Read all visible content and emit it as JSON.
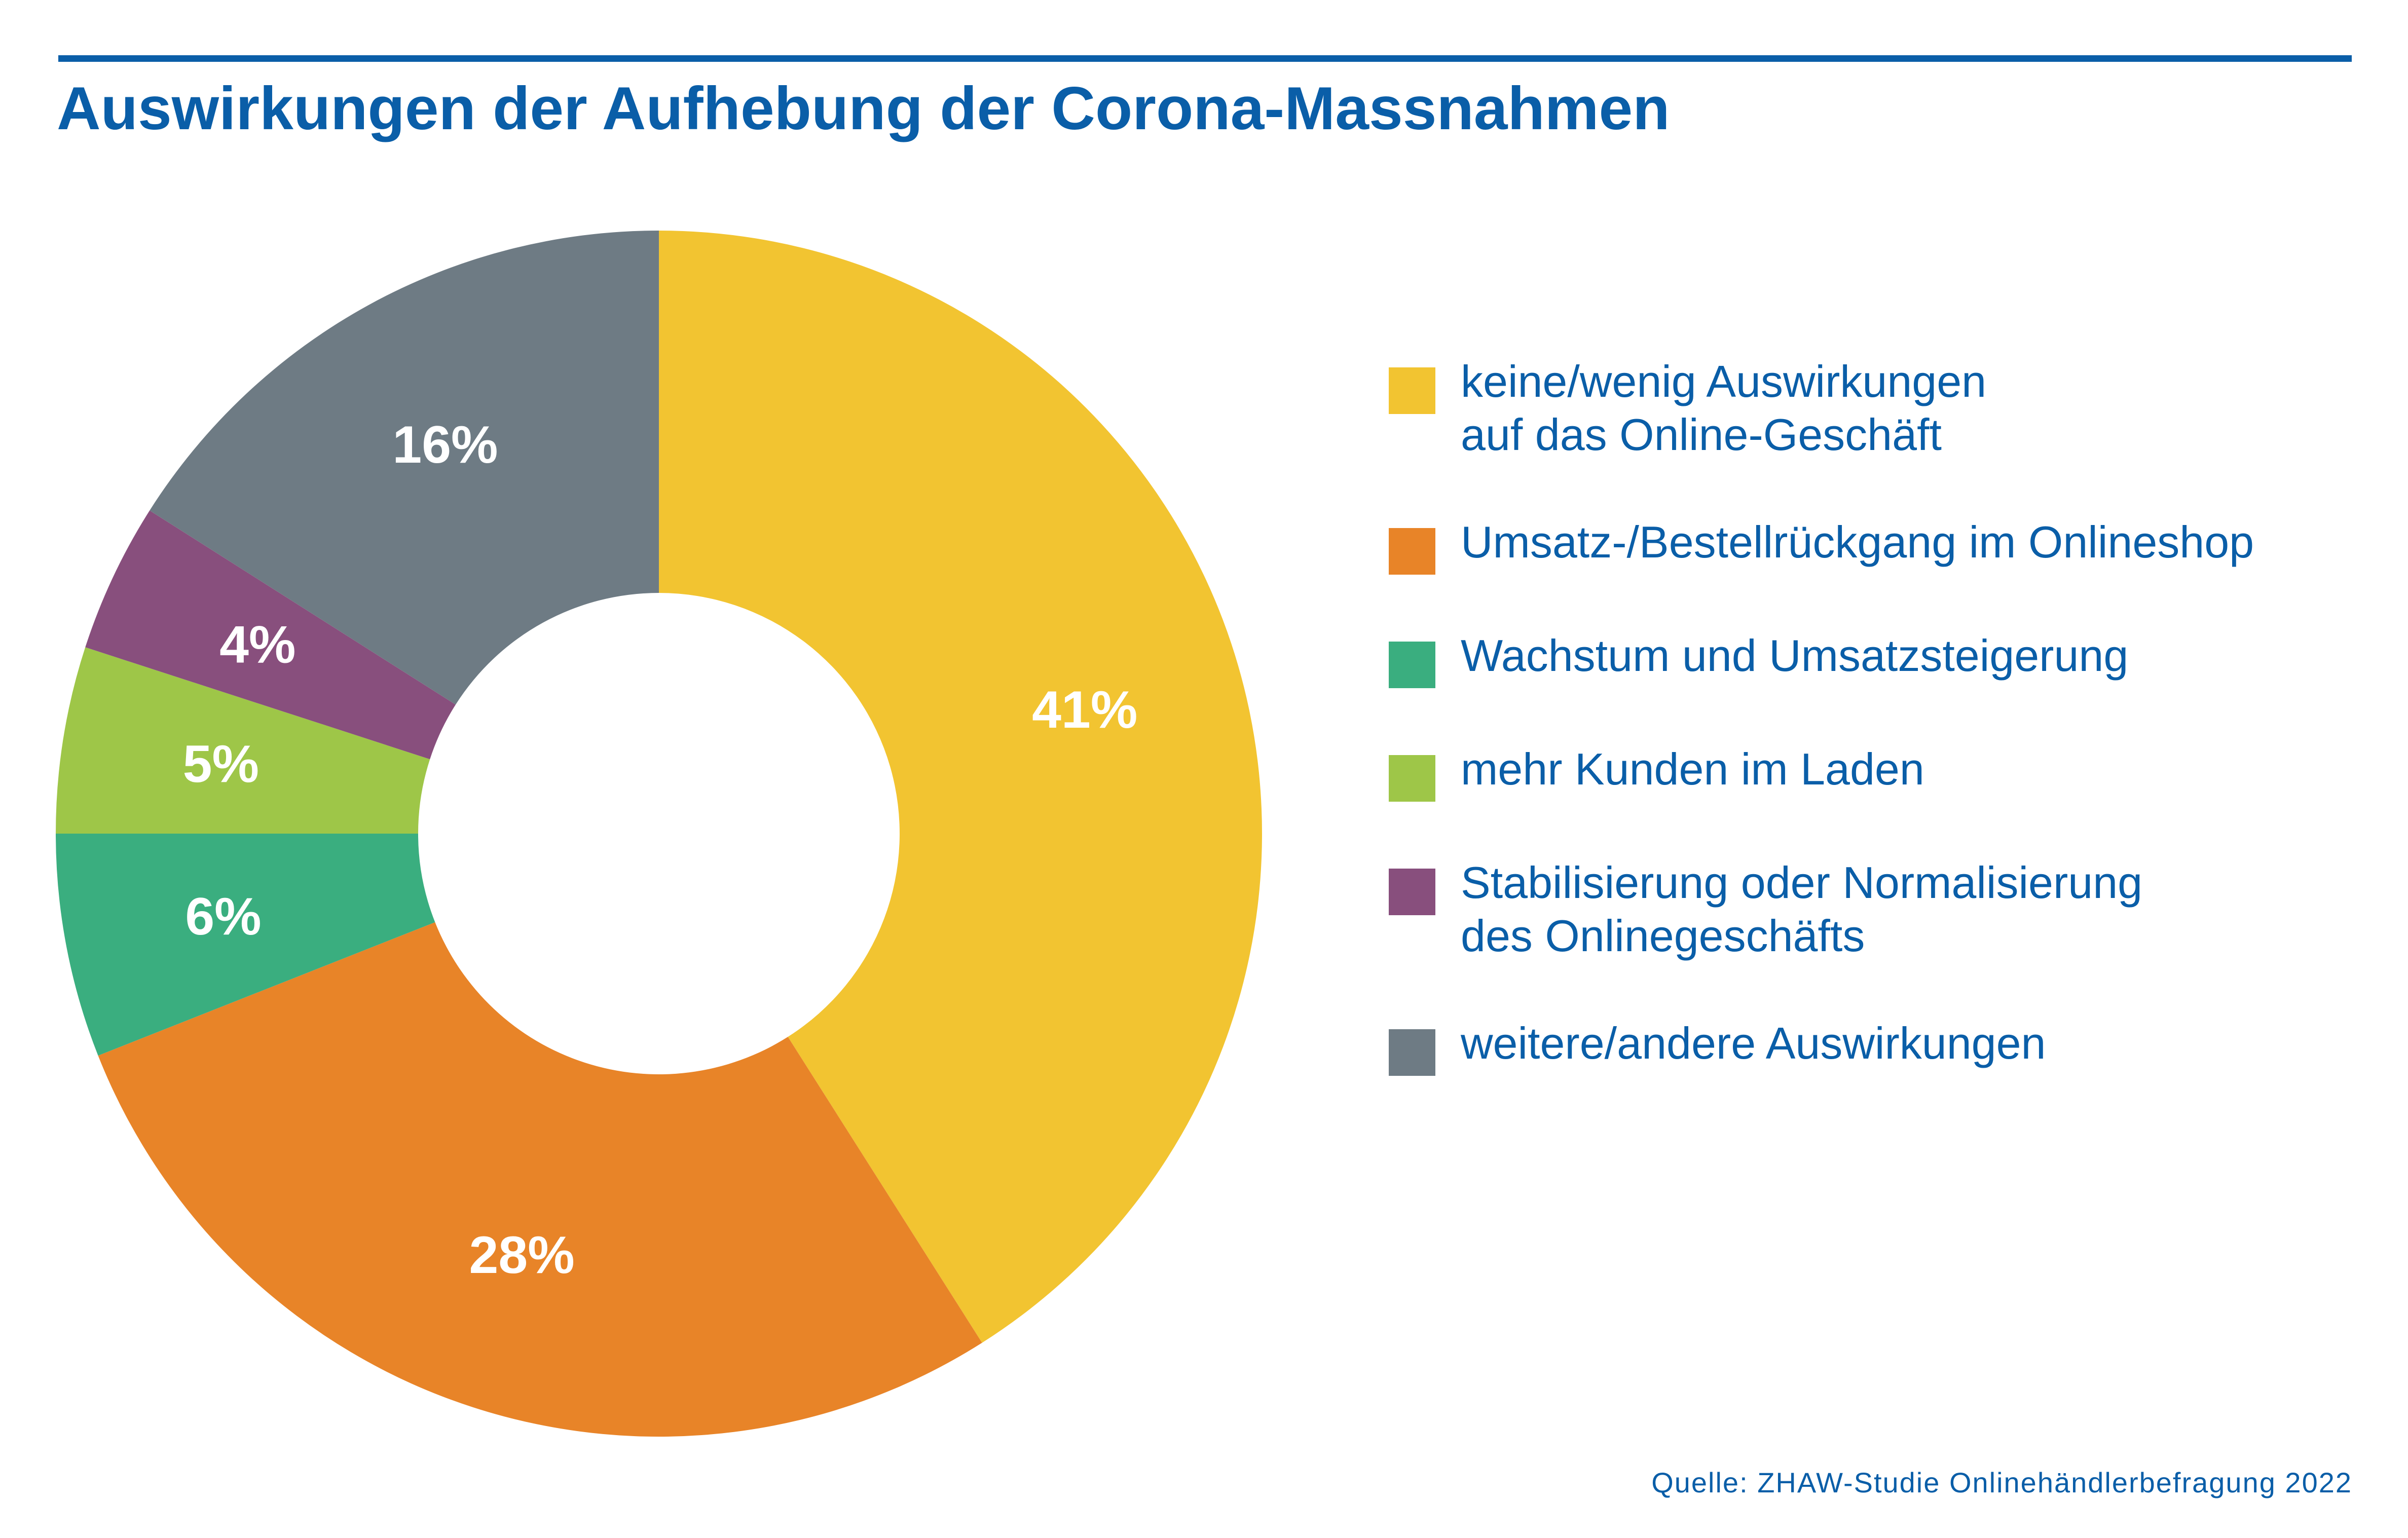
{
  "title": "Auswirkungen der Aufhebung der Corona-Massnahmen",
  "source": "Quelle: ZHAW-Studie Onlinehändlerbefragung 2022",
  "chart_data": {
    "type": "pie",
    "variant": "donut",
    "unit": "%",
    "slices": [
      {
        "label": "keine/wenig Auswirkungen\nauf das Online-Geschäft",
        "value": 41,
        "display": "41%",
        "color": "#f2c431"
      },
      {
        "label": "Umsatz-/Bestellrückgang im Onlineshop",
        "value": 28,
        "display": "28%",
        "color": "#e88428"
      },
      {
        "label": "Wachstum und Umsatzsteigerung",
        "value": 6,
        "display": "6%",
        "color": "#3aae7f"
      },
      {
        "label": "mehr Kunden im Laden",
        "value": 5,
        "display": "5%",
        "color": "#9ec648"
      },
      {
        "label": "Stabilisierung oder Normalisierung\ndes Onlinegeschäfts",
        "value": 4,
        "display": "4%",
        "color": "#884f7d"
      },
      {
        "label": "weitere/andere Auswirkungen",
        "value": 16,
        "display": "16%",
        "color": "#6e7b84"
      }
    ],
    "legend_position": "right",
    "start": "top",
    "direction": "clockwise"
  }
}
